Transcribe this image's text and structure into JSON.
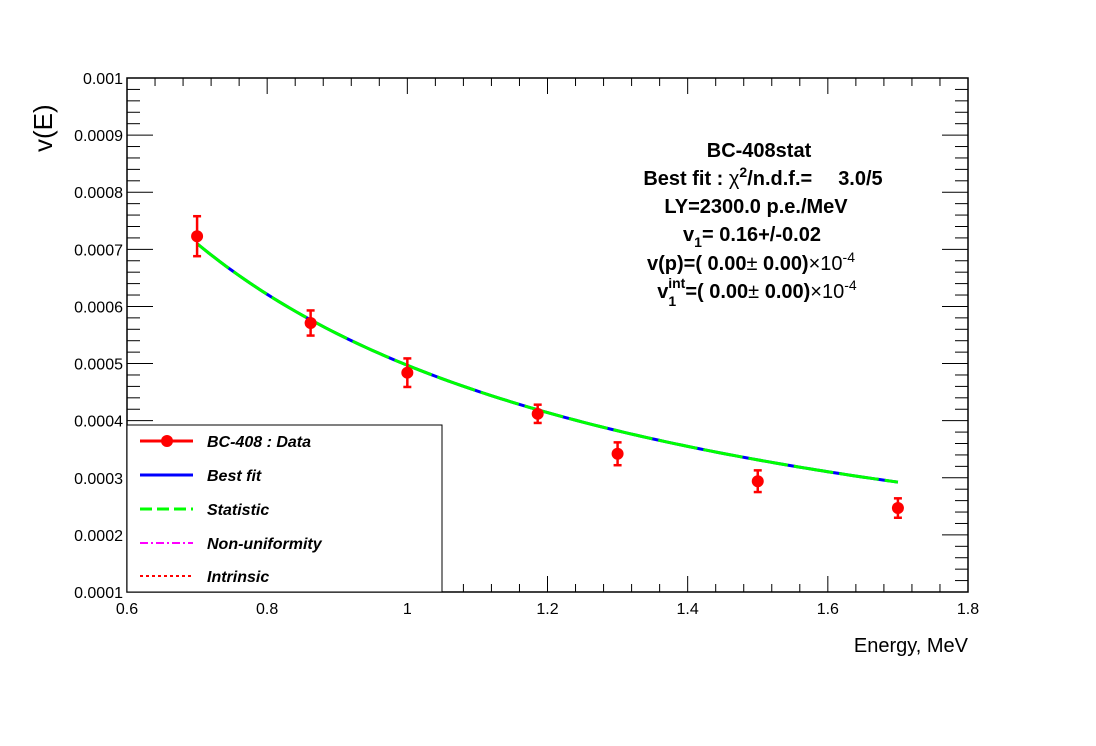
{
  "chart_data": {
    "type": "scatter",
    "title": "",
    "xlabel": "Energy, MeV",
    "ylabel": "v(E)",
    "xlim": [
      0.6,
      1.8
    ],
    "ylim": [
      0.0001,
      0.001
    ],
    "x_ticks": [
      0.6,
      0.8,
      1.0,
      1.2,
      1.4,
      1.6,
      1.8
    ],
    "x_tick_labels": [
      "0.6",
      "0.8",
      "1",
      "1.2",
      "1.4",
      "1.6",
      "1.8"
    ],
    "y_ticks": [
      0.0001,
      0.0002,
      0.0003,
      0.0004,
      0.0005,
      0.0006,
      0.0007,
      0.0008,
      0.0009,
      0.001
    ],
    "y_tick_labels": [
      "0.0001",
      "0.0002",
      "0.0003",
      "0.0004",
      "0.0005",
      "0.0006",
      "0.0007",
      "0.0008",
      "0.0009",
      "0.001"
    ],
    "data_series": {
      "name": "BC-408 : Data",
      "color": "#ff0000",
      "points": [
        {
          "x": 0.7,
          "y": 0.000723,
          "err": 3.5e-05
        },
        {
          "x": 0.862,
          "y": 0.000571,
          "err": 2.2e-05
        },
        {
          "x": 1.0,
          "y": 0.000484,
          "err": 2.5e-05
        },
        {
          "x": 1.186,
          "y": 0.000412,
          "err": 1.6e-05
        },
        {
          "x": 1.3,
          "y": 0.000342,
          "err": 2e-05
        },
        {
          "x": 1.5,
          "y": 0.000294,
          "err": 1.9e-05
        },
        {
          "x": 1.7,
          "y": 0.000247,
          "err": 1.7e-05
        }
      ]
    },
    "fit_model": {
      "form": "a/E",
      "a": 0.000497,
      "x_start": 0.7,
      "x_end": 1.7
    },
    "annotations": {
      "line1": "BC-408stat",
      "line2_prefix": "Best fit : ",
      "line2_chi": "χ",
      "line2_sup": "2",
      "line2_rest": "/n.d.f.=",
      "line2_value": "3.0/5",
      "line3": "LY=2300.0 p.e./MeV",
      "line4_v": "v",
      "line4_sub": "1",
      "line4_rest": "= 0.16+/-0.02",
      "line5_main": "v(p)=( 0.00",
      "line5_pm": "±",
      "line5_rest": " 0.00)",
      "line5_times": "×10",
      "line5_exp": "-4",
      "line6_v": "v",
      "line6_sub": "1",
      "line6_sup": "int",
      "line6_main": "=( 0.00",
      "line6_pm": "±",
      "line6_rest": " 0.00)",
      "line6_times": "×10",
      "line6_exp": "-4"
    },
    "legend": {
      "placement": "bottom-left",
      "entries": [
        {
          "label": "BC-408 : Data",
          "style": "marker-line",
          "color": "#ff0000"
        },
        {
          "label": "Best fit",
          "style": "solid",
          "color": "#0000ff"
        },
        {
          "label": "Statistic",
          "style": "dashed",
          "color": "#00ff00"
        },
        {
          "label": "Non-uniformity",
          "style": "dashdot",
          "color": "#ff00ff"
        },
        {
          "label": "Intrinsic",
          "style": "dotted",
          "color": "#ff0000"
        }
      ]
    }
  }
}
